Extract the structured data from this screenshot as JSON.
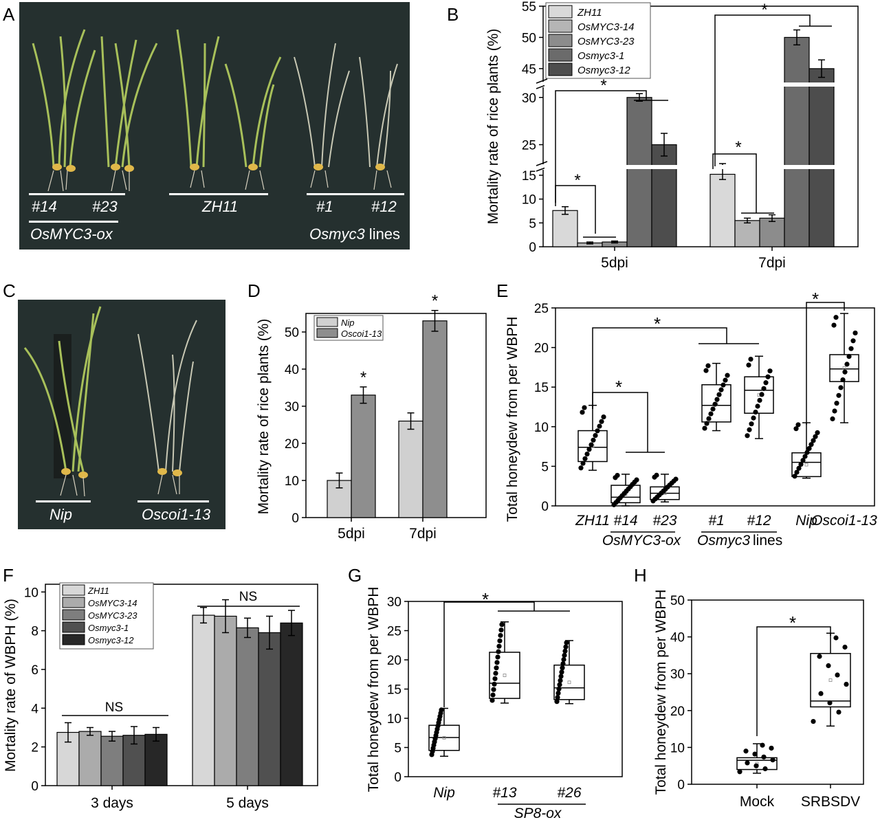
{
  "panels": {
    "A": "A",
    "B": "B",
    "C": "C",
    "D": "D",
    "E": "E",
    "F": "F",
    "G": "G",
    "H": "H"
  },
  "photoA": {
    "labels": [
      "#14",
      "#23",
      "ZH11",
      "#1",
      "#12"
    ],
    "group1": "OsMYC3-ox",
    "group2_italic": "Osmyc3",
    "group2_suffix": " lines"
  },
  "photoC": {
    "labels": [
      "Nip",
      "Oscoi1-13"
    ]
  },
  "chart_data": [
    {
      "panel": "B",
      "type": "bar",
      "categories": [
        "5dpi",
        "7dpi"
      ],
      "ylabel": "Mortality rate of rice plants (%)",
      "yticks_lower": [
        "0",
        "5",
        "10",
        "15"
      ],
      "yticks_middle": [
        "25",
        "30"
      ],
      "yticks_upper": [
        "45",
        "50",
        "55"
      ],
      "series": [
        {
          "name": "ZH11",
          "values": [
            7.6,
            15.2
          ],
          "err": [
            0.8,
            1.1
          ],
          "color": "#d9d9d9"
        },
        {
          "name": "OsMYC3-14",
          "values": [
            0.8,
            5.5
          ],
          "err": [
            0.2,
            0.5
          ],
          "color": "#b5b5b5"
        },
        {
          "name": "OsMYC3-23",
          "values": [
            1.0,
            6.0
          ],
          "err": [
            0.2,
            0.7
          ],
          "color": "#8c8c8c"
        },
        {
          "name": "Osmyc3-1",
          "values": [
            30,
            50
          ],
          "err": [
            0.4,
            1.2
          ],
          "color": "#6b6b6b"
        },
        {
          "name": "Osmyc3-12",
          "values": [
            25,
            45
          ],
          "err": [
            1.2,
            1.4
          ],
          "color": "#4d4d4d"
        }
      ],
      "annotations": [
        "*",
        "*",
        "*",
        "*"
      ]
    },
    {
      "panel": "D",
      "type": "bar",
      "categories": [
        "5dpi",
        "7dpi"
      ],
      "ylabel": "Mortality rate of rice plants (%)",
      "ylim": [
        0,
        55
      ],
      "yticks": [
        "0",
        "10",
        "20",
        "30",
        "40",
        "50"
      ],
      "series": [
        {
          "name": "Nip",
          "values": [
            10.0,
            26.0
          ],
          "err": [
            2.0,
            2.2
          ],
          "color": "#d0d0d0"
        },
        {
          "name": "Oscoi1-13",
          "values": [
            33.0,
            53.0
          ],
          "err": [
            2.2,
            2.8
          ],
          "color": "#8e8e8e"
        }
      ],
      "annotations": [
        "*",
        "*"
      ]
    },
    {
      "panel": "E",
      "type": "box",
      "ylabel": "Total honeydew from per WBPH",
      "ylim": [
        0,
        25
      ],
      "yticks": [
        "0",
        "5",
        "10",
        "15",
        "20",
        "25"
      ],
      "categories": [
        "ZH11",
        "#14",
        "#23",
        "#1",
        "#12",
        "Nip",
        "Oscoi1-13"
      ],
      "groups": [
        "OsMYC3-ox",
        "Osmyc3",
        " lines"
      ],
      "boxes": [
        {
          "q1": 5.6,
          "median": 7.4,
          "q3": 9.5,
          "min": 4.5,
          "max": 12.7
        },
        {
          "q1": 0.4,
          "median": 1.1,
          "q3": 2.6,
          "min": 0.0,
          "max": 4.0
        },
        {
          "q1": 0.8,
          "median": 1.6,
          "q3": 2.4,
          "min": 0.5,
          "max": 4.0
        },
        {
          "q1": 10.6,
          "median": 12.7,
          "q3": 15.3,
          "min": 9.5,
          "max": 18.0
        },
        {
          "q1": 11.7,
          "median": 14.6,
          "q3": 16.3,
          "min": 8.5,
          "max": 18.9
        },
        {
          "q1": 3.7,
          "median": 5.5,
          "q3": 6.7,
          "min": 3.5,
          "max": 10.5
        },
        {
          "q1": 15.7,
          "median": 17.3,
          "q3": 19.1,
          "min": 10.5,
          "max": 24.3
        }
      ],
      "annotations": [
        "*",
        "*",
        "*"
      ]
    },
    {
      "panel": "F",
      "type": "bar",
      "categories": [
        "3 days",
        "5 days"
      ],
      "ylabel": "Mortality rate of WBPH (%)",
      "ylim": [
        0,
        10.4
      ],
      "yticks": [
        "0",
        "2",
        "4",
        "6",
        "8",
        "10"
      ],
      "series": [
        {
          "name": "ZH11",
          "values": [
            2.75,
            8.8
          ],
          "err": [
            0.5,
            0.4
          ],
          "color": "#d7d7d7"
        },
        {
          "name": "OsMYC3-14",
          "values": [
            2.8,
            8.75
          ],
          "err": [
            0.2,
            0.85
          ],
          "color": "#ababab"
        },
        {
          "name": "OsMYC3-23",
          "values": [
            2.55,
            8.15
          ],
          "err": [
            0.25,
            0.5
          ],
          "color": "#7e7e7e"
        },
        {
          "name": "Osmyc3-1",
          "values": [
            2.6,
            7.9
          ],
          "err": [
            0.45,
            0.85
          ],
          "color": "#505050"
        },
        {
          "name": "Osmyc3-12",
          "values": [
            2.65,
            8.4
          ],
          "err": [
            0.35,
            0.65
          ],
          "color": "#272727"
        }
      ],
      "annotations": [
        "NS",
        "NS"
      ]
    },
    {
      "panel": "G",
      "type": "box",
      "ylabel": "Total honeydew from per WBPH",
      "ylim": [
        0,
        30
      ],
      "yticks": [
        "0",
        "5",
        "10",
        "15",
        "20",
        "25",
        "30"
      ],
      "categories": [
        "Nip",
        "#13",
        "#26"
      ],
      "groups": [
        "SP8-ox"
      ],
      "boxes": [
        {
          "q1": 4.5,
          "median": 6.7,
          "q3": 8.8,
          "min": 3.5,
          "max": 11.7
        },
        {
          "q1": 13.4,
          "median": 16.0,
          "q3": 21.3,
          "min": 12.6,
          "max": 26.5
        },
        {
          "q1": 13.2,
          "median": 15.2,
          "q3": 19.1,
          "min": 12.5,
          "max": 23.3
        }
      ],
      "annotations": [
        "*"
      ]
    },
    {
      "panel": "H",
      "type": "box",
      "ylabel": "Total honeydew from per WBPH",
      "ylim": [
        0,
        50
      ],
      "yticks": [
        "0",
        "10",
        "20",
        "30",
        "40",
        "50"
      ],
      "categories": [
        "Mock",
        "SRBSDV"
      ],
      "boxes": [
        {
          "q1": 4.0,
          "median": 6.5,
          "q3": 7.2,
          "min": 3.0,
          "max": 11.0
        },
        {
          "q1": 21.0,
          "median": 22.6,
          "q3": 35.5,
          "min": 15.8,
          "max": 41.0
        }
      ],
      "annotations": [
        "*"
      ]
    }
  ]
}
